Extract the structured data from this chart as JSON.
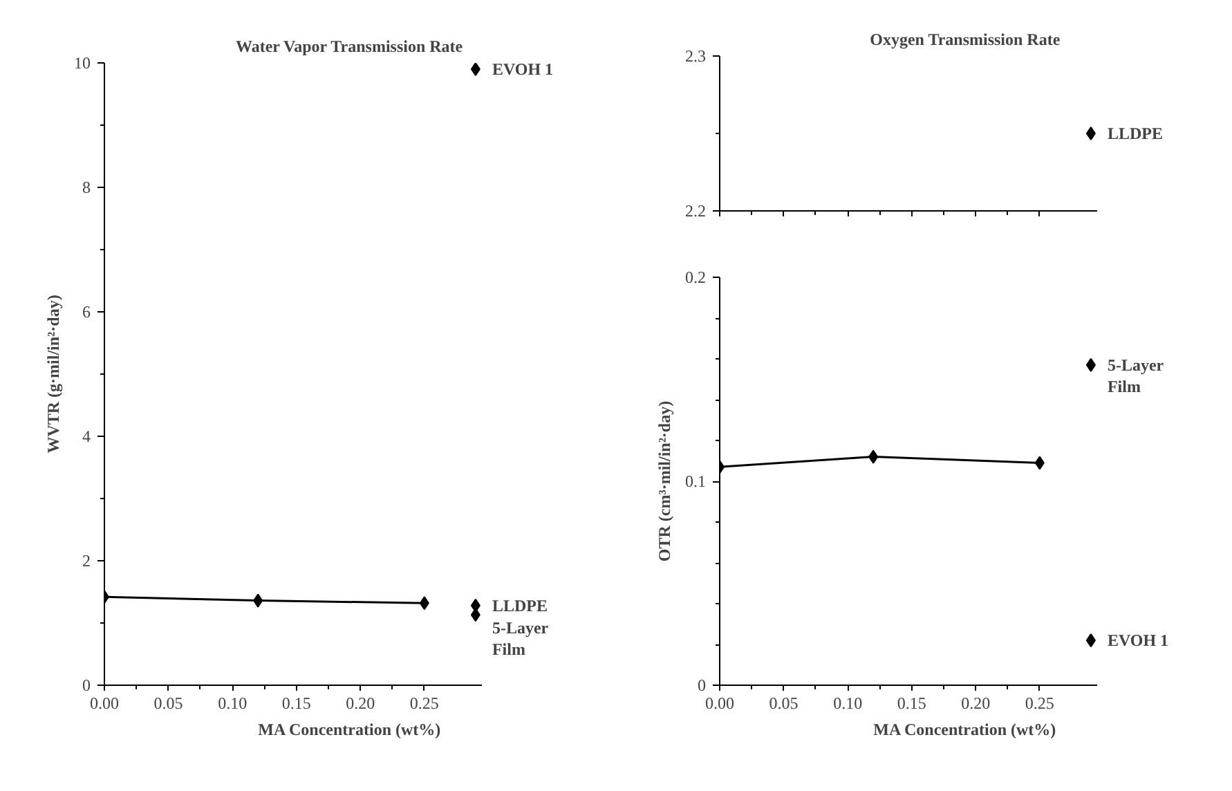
{
  "chart_data": [
    {
      "type": "line",
      "title": "Water Vapor Transmission Rate",
      "xlabel": "MA Concentration (wt%)",
      "ylabel": "WVTR (g·mil/in²·day)",
      "xlim": [
        0,
        0.295
      ],
      "xticks": [
        {
          "value": 0,
          "label": "0.00"
        },
        {
          "value": 0.05,
          "label": "0.05"
        },
        {
          "value": 0.1,
          "label": "0.10"
        },
        {
          "value": 0.15,
          "label": "0.15"
        },
        {
          "value": 0.2,
          "label": "0.20"
        },
        {
          "value": 0.25,
          "label": "0.25"
        }
      ],
      "ylim": [
        0,
        10
      ],
      "yticks": [
        0,
        2,
        4,
        6,
        8,
        10
      ],
      "grid": false,
      "marker": "diamond",
      "line_style": "solid",
      "series": [
        {
          "color": "#000000",
          "x": [
            0,
            0.12,
            0.25
          ],
          "values": [
            1.42,
            1.36,
            1.32
          ]
        },
        {
          "type": "scatter",
          "name": "EVOH 1",
          "color": "#000000",
          "x": [
            0.29
          ],
          "values": [
            9.9
          ]
        },
        {
          "type": "scatter",
          "name": "LLDPE",
          "color": "#000000",
          "x": [
            0.29
          ],
          "values": [
            1.28
          ]
        },
        {
          "type": "scatter",
          "name": "5-Layer Film",
          "color": "#000000",
          "x": [
            0.29
          ],
          "values": [
            1.13
          ]
        }
      ]
    },
    {
      "type": "scatter",
      "title": "Oxygen Transmission Rate",
      "xlim": [
        0,
        0.295
      ],
      "xticks": [
        {
          "value": 0,
          "label": "0.00"
        },
        {
          "value": 0.05,
          "label": "0.05"
        },
        {
          "value": 0.1,
          "label": "0.10"
        },
        {
          "value": 0.15,
          "label": "0.15"
        },
        {
          "value": 0.2,
          "label": "0.20"
        },
        {
          "value": 0.25,
          "label": "0.25"
        }
      ],
      "ylim": [
        2.2,
        2.3
      ],
      "yticks": [
        2.2,
        2.3
      ],
      "tick_labels": "y",
      "grid": false,
      "marker": "diamond",
      "series": [
        {
          "name": "LLDPE",
          "color": "#000000",
          "x": [
            0.29
          ],
          "values": [
            2.25
          ]
        }
      ]
    },
    {
      "type": "line",
      "xlabel": "MA Concentration (wt%)",
      "ylabel": "OTR (cm³·mil/in²·day)",
      "xlim": [
        0,
        0.295
      ],
      "xticks": [
        {
          "value": 0,
          "label": "0.00"
        },
        {
          "value": 0.05,
          "label": "0.05"
        },
        {
          "value": 0.1,
          "label": "0.10"
        },
        {
          "value": 0.15,
          "label": "0.15"
        },
        {
          "value": 0.2,
          "label": "0.20"
        },
        {
          "value": 0.25,
          "label": "0.25"
        }
      ],
      "ylim": [
        0,
        0.2
      ],
      "yticks": [
        0,
        0.1,
        0.2
      ],
      "grid": false,
      "marker": "diamond",
      "line_style": "solid",
      "series": [
        {
          "color": "#000000",
          "x": [
            0,
            0.12,
            0.25
          ],
          "values": [
            0.107,
            0.112,
            0.109
          ]
        },
        {
          "type": "scatter",
          "name": "5-Layer Film",
          "color": "#000000",
          "x": [
            0.29
          ],
          "values": [
            0.157
          ]
        },
        {
          "type": "scatter",
          "name": "EVOH 1",
          "color": "#000000",
          "x": [
            0.29
          ],
          "values": [
            0.022
          ]
        }
      ]
    }
  ]
}
